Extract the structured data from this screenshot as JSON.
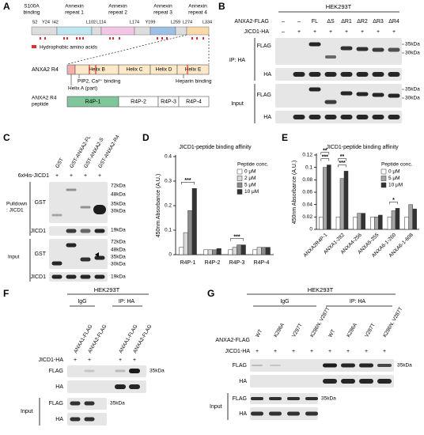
{
  "panel_a": {
    "letter": "A",
    "domains": [
      [
        "S100A",
        "binding"
      ],
      [
        "Annexin",
        "repeat 1"
      ],
      [
        "Annexin",
        "repeat 2"
      ],
      [
        "Annexin",
        "repeat 3"
      ],
      [
        "Annexin",
        "repeat 4"
      ]
    ],
    "residues": [
      "S2",
      "Y24",
      "I42",
      "L102",
      "L114",
      "L174",
      "Y199",
      "L259",
      "L274",
      "L334"
    ],
    "legend": "Hydrophobic amino acids",
    "r4_label": "ANXA2 R4",
    "helices": [
      "Helix B",
      "Helix C",
      "Helix D",
      "Helix E"
    ],
    "annotations": [
      "PIP2, Ca²⁺ binding",
      "Helix A (part)",
      "Heparin binding"
    ],
    "peptide_label": [
      "ANXA2 R4",
      "peptide"
    ],
    "peptides": [
      "R4P-1",
      "R4P-2",
      "R4P-3",
      "R4P-4"
    ]
  },
  "panel_b": {
    "letter": "B",
    "cell_line": "HEK293T",
    "row_labels": [
      "ANXA2-FLAG",
      "JICD1-HA"
    ],
    "anxa2_flag": [
      "–",
      "–",
      "FL",
      "ΔS",
      "ΔR1",
      "ΔR2",
      "ΔR3",
      "ΔR4"
    ],
    "jicd1_ha": [
      "–",
      "+",
      "+",
      "+",
      "+",
      "+",
      "+",
      "+"
    ],
    "groups": [
      "IP: HA",
      "Input"
    ],
    "blots": [
      "FLAG",
      "HA",
      "FLAG",
      "HA"
    ],
    "markers": [
      "35kDa",
      "30kDa",
      "35kDa",
      "30kDa"
    ]
  },
  "panel_c": {
    "letter": "C",
    "columns": [
      "GST",
      "GST-ANXA2-FL",
      "GST-ANXA2-S",
      "GST-ANXA2-R4"
    ],
    "row_label": "6xHis-JICD1",
    "row": [
      "+",
      "+",
      "+",
      "+"
    ],
    "groups": [
      [
        "Pulldown",
        ": JICD1"
      ],
      "Input"
    ],
    "blots": [
      "GST",
      "JICD1",
      "GST",
      "JICD1"
    ],
    "markers_pulldown": [
      "72kDa",
      "48kDa",
      "35kDa",
      "30kDa",
      "19kDa"
    ],
    "markers_input": [
      "72kDa",
      "48kDa",
      "35kDa",
      "30kDa",
      "19kDa"
    ]
  },
  "panel_f": {
    "letter": "F",
    "cell_line": "HEK293T",
    "groups": [
      "IgG",
      "IP: HA"
    ],
    "columns": [
      "ANXA1-FLAG",
      "ANXA2-FLAG",
      "ANXA1-FLAG",
      "ANXA2-FLAG"
    ],
    "row_label": "JICD1-HA",
    "row": [
      "+",
      "+",
      "+",
      "+"
    ],
    "blots": [
      "FLAG",
      "HA"
    ],
    "input_label": "Input",
    "input_blots": [
      "FLAG",
      "HA"
    ],
    "markers": [
      "35kDa",
      "35kDa"
    ]
  },
  "panel_g": {
    "letter": "G",
    "cell_line": "HEK293T",
    "groups": [
      "IgG",
      "IP: HA"
    ],
    "row_labels": [
      "ANXA2-FLAG",
      "JICD1-HA"
    ],
    "columns": [
      "WT",
      "K286A",
      "V287T",
      "K286N, V287T",
      "WT",
      "K286A",
      "V287T",
      "K286N, V287T"
    ],
    "row": [
      "+",
      "+",
      "+",
      "+",
      "+",
      "+",
      "+",
      "+"
    ],
    "blots": [
      "FLAG",
      "HA"
    ],
    "input_label": "Input",
    "input_blots": [
      "FLAG",
      "HA"
    ],
    "markers": [
      "35kDa",
      "35kDa"
    ]
  },
  "chart_data": [
    {
      "type": "bar",
      "panel_label": "D",
      "title": "JICD1-peptide binding affinity",
      "y_label": "450nm Absorbance (A.U.)",
      "legend_title": "Peptide conc.",
      "categories": [
        "R4P-1",
        "R4P-2",
        "R4P-3",
        "R4P-4"
      ],
      "series": [
        {
          "name": "0 μM",
          "color": "#ffffff",
          "values": [
            0.03,
            0.02,
            0.02,
            0.02
          ]
        },
        {
          "name": "2 μM",
          "color": "#d9d9d9",
          "values": [
            0.09,
            0.02,
            0.03,
            0.03
          ]
        },
        {
          "name": "5 μM",
          "color": "#8c8c8c",
          "values": [
            0.18,
            0.02,
            0.04,
            0.03
          ]
        },
        {
          "name": "10 μM",
          "color": "#333333",
          "values": [
            0.27,
            0.025,
            0.04,
            0.03
          ]
        }
      ],
      "ylim": [
        0,
        0.4
      ],
      "yticks": [
        0,
        0.1,
        0.2,
        0.3,
        0.4
      ],
      "annotations": [
        "***",
        "***"
      ]
    },
    {
      "type": "bar",
      "panel_label": "E",
      "title": "JICD1-peptide binding affinity",
      "y_label": "450nm Absorbance (A.U.)",
      "legend_title": "Peptide conc.",
      "categories": [
        "ANXA2R4P-1",
        "ANXA1-282",
        "ANXA4-256",
        "ANXA5-255",
        "ANXA6-1-260",
        "ANXA6-1-608"
      ],
      "series": [
        {
          "name": "0 μM",
          "color": "#ffffff",
          "values": [
            0.02,
            0.02,
            0.02,
            0.02,
            0.02,
            0.02
          ]
        },
        {
          "name": "5 μM",
          "color": "#a6a6a6",
          "values": [
            0.1,
            0.082,
            0.026,
            0.02,
            0.03,
            0.04
          ]
        },
        {
          "name": "10 μM",
          "color": "#333333",
          "values": [
            0.104,
            0.094,
            0.026,
            0.023,
            0.034,
            0.033
          ]
        }
      ],
      "ylim": [
        0,
        0.12
      ],
      "yticks": [
        0,
        0.02,
        0.04,
        0.06,
        0.08,
        0.1,
        0.12
      ],
      "annotations": [
        "**",
        "***",
        "**",
        "***",
        "*"
      ]
    }
  ]
}
